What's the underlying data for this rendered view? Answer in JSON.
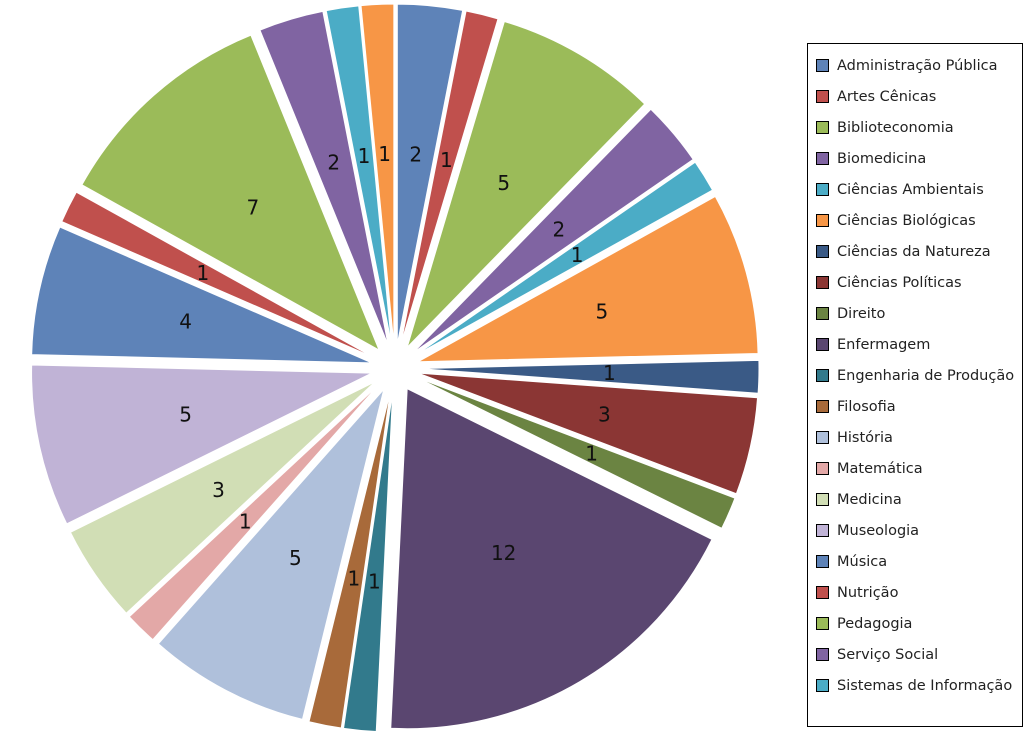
{
  "chart_data": {
    "type": "pie",
    "exploded": true,
    "categories": [
      "Administração Pública",
      "Artes Cênicas",
      "Biblioteconomia",
      "Biomedicina",
      "Ciências Ambientais",
      "Ciências Biológicas",
      "Ciências da Natureza",
      "Ciências Políticas",
      "Direito",
      "Enfermagem",
      "Engenharia de Produção",
      "Filosofia",
      "História",
      "Matemática",
      "Medicina",
      "Museologia",
      "Música",
      "Nutrição",
      "Pedagogia",
      "Serviço Social",
      "Sistemas de Informação",
      ""
    ],
    "values": [
      2,
      1,
      5,
      2,
      1,
      5,
      1,
      3,
      1,
      12,
      1,
      1,
      5,
      1,
      3,
      5,
      4,
      1,
      7,
      2,
      1,
      1
    ],
    "colors": [
      "#5E83B8",
      "#C0504D",
      "#9BBB59",
      "#8064A2",
      "#4BACC6",
      "#F79646",
      "#3A5A86",
      "#8B3634",
      "#6B8442",
      "#5A4670",
      "#327A8C",
      "#A86A3A",
      "#AFC0DB",
      "#E3A8A7",
      "#D1DEB5",
      "#C0B3D6",
      "#5E83B8",
      "#C0504D",
      "#9BBB59",
      "#8064A2",
      "#4BACC6",
      "#F79646"
    ],
    "legend_position": "right",
    "data_labels": true
  }
}
